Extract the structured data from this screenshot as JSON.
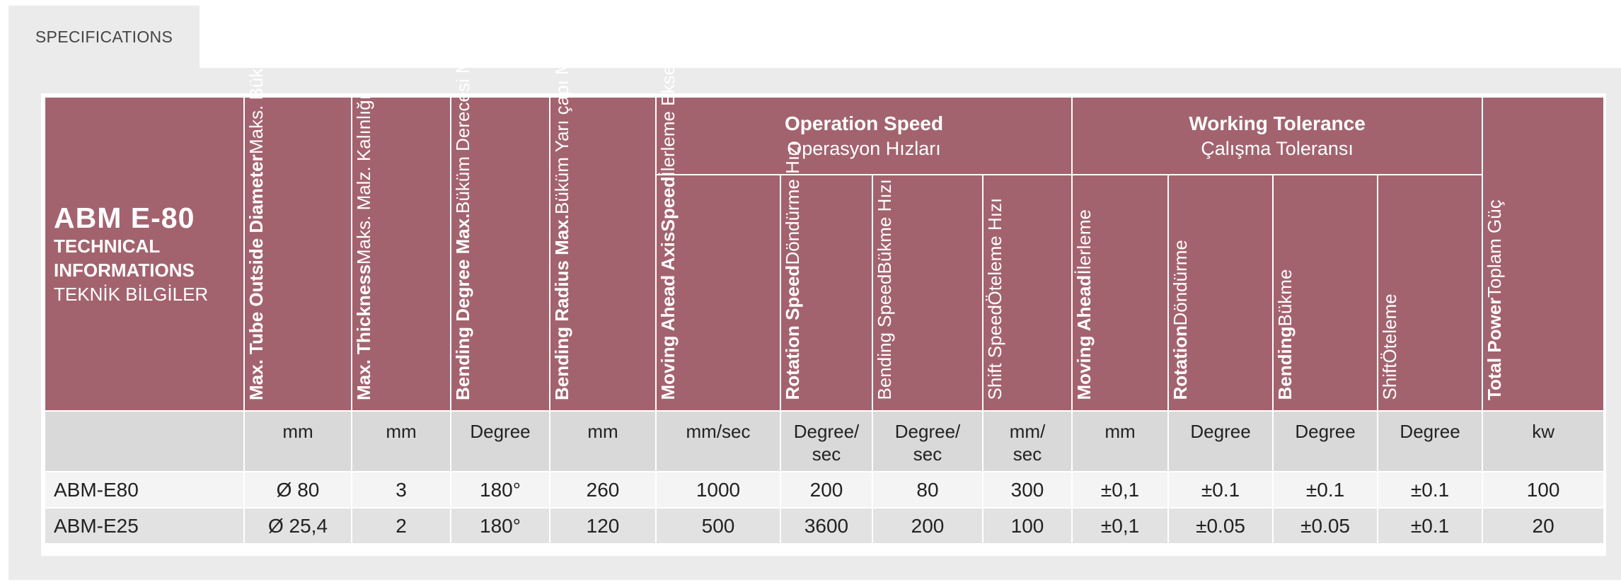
{
  "tabs": [
    {
      "label": "SPECIFICATIONS"
    }
  ],
  "colors": {
    "header_bg": "#a3636e",
    "unit_row_bg": "#d9d9d9",
    "panel_bg": "#ebebeb"
  },
  "table": {
    "title": {
      "model": "ABM E-80",
      "line1": "TECHNICAL",
      "line2": "INFORMATIONS",
      "line3": "TEKNİK BİLGİLER"
    },
    "columns": {
      "tube_diameter": {
        "en": "Max. Tube Outside Diameter",
        "tr": "Maks. Bükme Çapı",
        "unit": "mm"
      },
      "thickness": {
        "en": "Max. Thickness",
        "tr": "Maks. Malz. Kalınlığı",
        "unit": "mm"
      },
      "bending_degree": {
        "en": "Bending Degree Max.",
        "tr": "Büküm Derecesi Maks.",
        "unit": "Degree"
      },
      "bending_radius": {
        "en": "Bending Radius Max.",
        "tr": "Büküm Yarı çapı Maks.",
        "unit": "mm"
      },
      "op_moving": {
        "en1": "Moving Ahead Axis",
        "en2": "Speed",
        "tr": "İlerleme Ekseni Hızı",
        "unit": "mm/sec"
      },
      "op_rotation": {
        "en": "Rotation Speed",
        "tr": "Döndürme Hızı",
        "unit1": "Degree/",
        "unit2": "sec"
      },
      "op_bending": {
        "en": "Bending Speed",
        "tr": "Bükme Hızı",
        "unit1": "Degree/",
        "unit2": "sec"
      },
      "op_shift": {
        "en": "Shift Speed",
        "tr": "Öteleme Hızı",
        "unit1": "mm/",
        "unit2": "sec"
      },
      "tol_moving": {
        "en": "Moving Ahead",
        "tr": "İlerleme",
        "unit": "mm"
      },
      "tol_rotation": {
        "en": "Rotation",
        "tr": "Döndürme",
        "unit": "Degree"
      },
      "tol_bending": {
        "en": "Bending",
        "tr": "Bükme",
        "unit": "Degree"
      },
      "tol_shift": {
        "en": "Shift",
        "tr": "Öteleme",
        "unit": "Degree"
      },
      "total_power": {
        "en": "Total Power",
        "tr": "Toplam Güç",
        "unit": "kw"
      }
    },
    "groups": {
      "operation_speed": {
        "en": "Operation Speed",
        "tr": "Operasyon Hızları"
      },
      "working_tolerance": {
        "en": "Working Tolerance",
        "tr": "Çalışma Toleransı"
      }
    },
    "rows": [
      {
        "model": "ABM-E80",
        "diameter": "Ø 80",
        "thickness": "3",
        "degree": "180°",
        "radius": "260",
        "op_moving": "1000",
        "op_rotation": "200",
        "op_bending": "80",
        "op_shift": "300",
        "tol_moving": "±0,1",
        "tol_rotation": "±0.1",
        "tol_bending": "±0.1",
        "tol_shift": "±0.1",
        "power": "100"
      },
      {
        "model": "ABM-E25",
        "diameter": "Ø 25,4",
        "thickness": "2",
        "degree": "180°",
        "radius": "120",
        "op_moving": "500",
        "op_rotation": "3600",
        "op_bending": "200",
        "op_shift": "100",
        "tol_moving": "±0,1",
        "tol_rotation": "±0.05",
        "tol_bending": "±0.05",
        "tol_shift": "±0.1",
        "power": "20"
      }
    ]
  }
}
